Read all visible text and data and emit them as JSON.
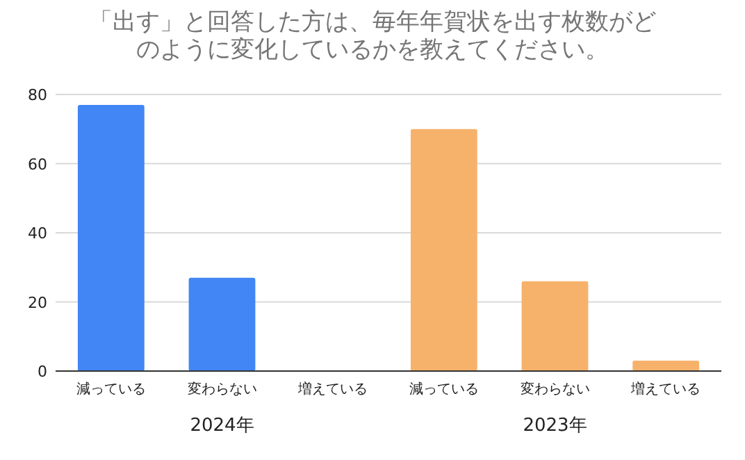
{
  "chart_data": {
    "type": "bar",
    "title": "「出す」と回答した方は、毎年年賀状を出す枚数がどのように変化しているかを教えてください。",
    "categories": [
      "減っている",
      "変わらない",
      "増えている",
      "減っている",
      "変わらない",
      "増えている"
    ],
    "series": [
      {
        "name": "2024年",
        "color": "#4285f4",
        "values": [
          77,
          27,
          0,
          null,
          null,
          null
        ]
      },
      {
        "name": "2023年",
        "color": "#f6b26b",
        "values": [
          null,
          null,
          null,
          70,
          26,
          3
        ]
      }
    ],
    "ylim": [
      0,
      80
    ],
    "yticks": [
      0,
      20,
      40,
      60,
      80
    ],
    "grid": "y"
  }
}
